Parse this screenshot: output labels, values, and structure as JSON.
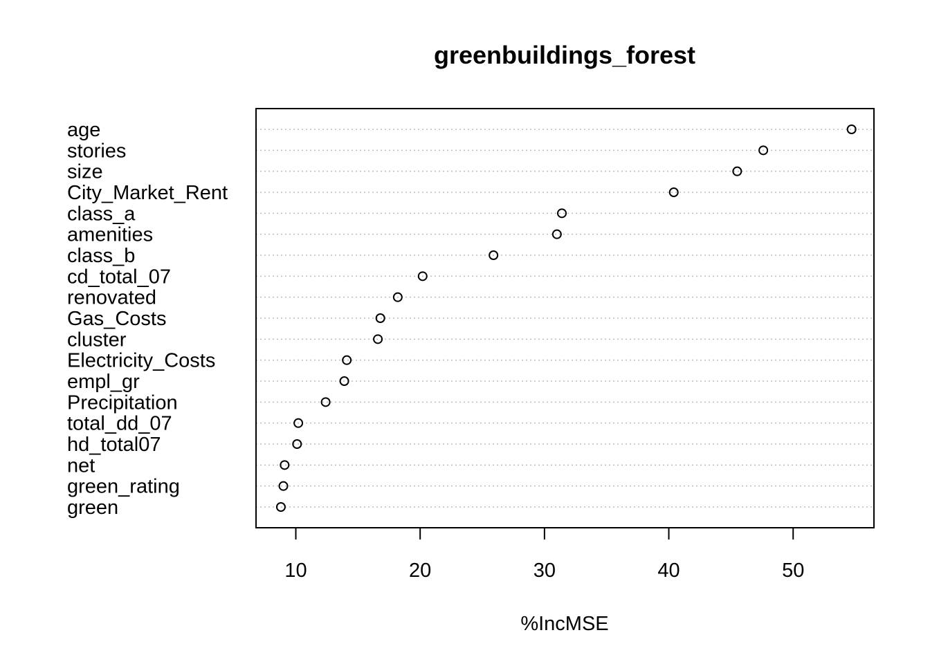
{
  "chart_data": {
    "type": "scatter",
    "subtype": "dotchart",
    "title": "greenbuildings_forest",
    "xlabel": "%IncMSE",
    "ylabel": "",
    "xlim": [
      6.8,
      56.5
    ],
    "xticks": [
      10,
      20,
      30,
      40,
      50
    ],
    "grid": "dotted horizontal lines per category",
    "categories": [
      "age",
      "stories",
      "size",
      "City_Market_Rent",
      "class_a",
      "amenities",
      "class_b",
      "cd_total_07",
      "renovated",
      "Gas_Costs",
      "cluster",
      "Electricity_Costs",
      "empl_gr",
      "Precipitation",
      "total_dd_07",
      "hd_total07",
      "net",
      "green_rating",
      "green"
    ],
    "values": [
      54.7,
      47.6,
      45.5,
      40.4,
      31.4,
      31.0,
      25.9,
      20.2,
      18.2,
      16.8,
      16.6,
      14.1,
      13.9,
      12.4,
      10.2,
      10.1,
      9.1,
      9.0,
      8.8
    ]
  }
}
